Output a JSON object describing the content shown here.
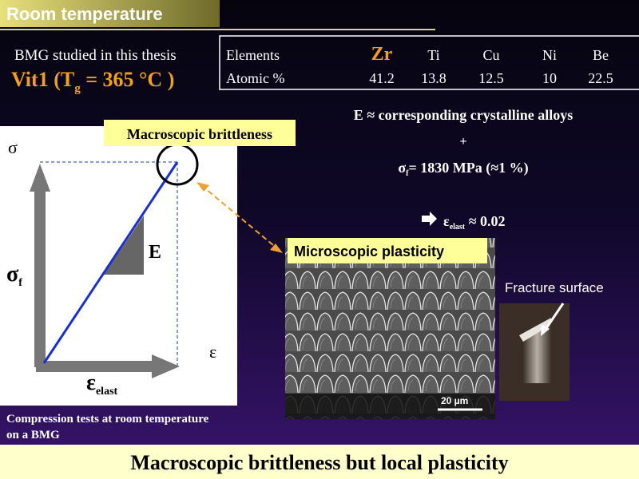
{
  "header": {
    "title": "Room temperature"
  },
  "intro": {
    "line1": "BMG studied in this thesis",
    "alloy": [
      "Vit1 (T",
      "g",
      " = 365 °C )"
    ]
  },
  "table": {
    "rows": [
      [
        "Elements",
        "Zr",
        "Ti",
        "Cu",
        "Ni",
        "Be"
      ],
      [
        "Atomic %",
        "41.2",
        "13.8",
        "12.5",
        "10",
        "22.5"
      ]
    ]
  },
  "properties": {
    "modulus": "E ≈ corresponding crystalline alloys",
    "plus": "+",
    "strength": [
      "σ",
      "f",
      "= 1830 MPa   (≈1 %)"
    ],
    "strain": [
      "ε",
      "elast",
      " ≈ 0.02"
    ]
  },
  "callouts": {
    "macro": "Macroscopic brittleness",
    "micro": "Microscopic plasticity",
    "fracture": "Fracture surface"
  },
  "diagram": {
    "y_axis": "σ",
    "stress": [
      "σ",
      "f"
    ],
    "modulus": "E",
    "x_axis": "ε",
    "strain": [
      "ε",
      "elast"
    ]
  },
  "micrograph": {
    "scale_bar": "20 µm"
  },
  "caption": [
    "Compression tests at room temperature",
    "on a BMG"
  ],
  "conclusion": "Macroscopic brittleness but local plasticity"
}
